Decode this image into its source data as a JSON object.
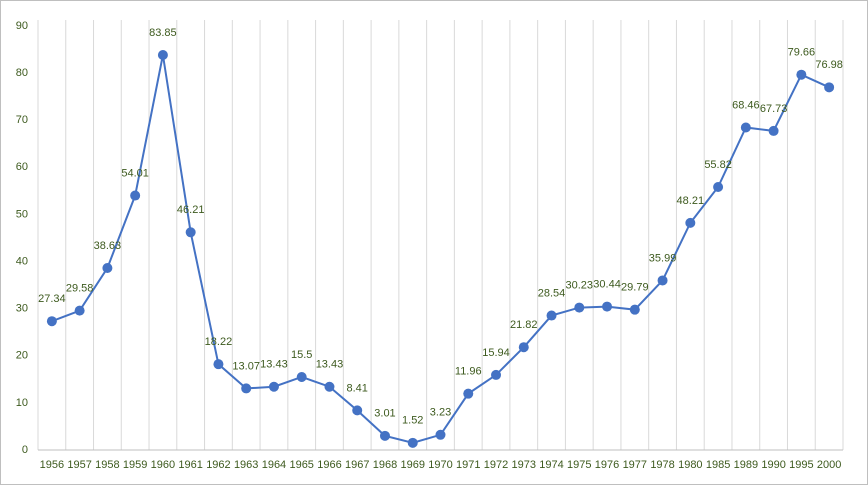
{
  "chart_data": {
    "type": "line",
    "categories": [
      "1956",
      "1957",
      "1958",
      "1959",
      "1960",
      "1961",
      "1962",
      "1963",
      "1964",
      "1965",
      "1966",
      "1967",
      "1968",
      "1969",
      "1970",
      "1971",
      "1972",
      "1973",
      "1974",
      "1975",
      "1976",
      "1977",
      "1978",
      "1980",
      "1985",
      "1989",
      "1990",
      "1995",
      "2000"
    ],
    "values": [
      27.34,
      29.58,
      38.63,
      54.01,
      83.85,
      46.21,
      18.22,
      13.07,
      13.43,
      15.5,
      13.43,
      8.41,
      3.01,
      1.52,
      3.23,
      11.96,
      15.94,
      21.82,
      28.54,
      30.23,
      30.44,
      29.79,
      35.99,
      48.21,
      55.82,
      68.46,
      67.73,
      79.66,
      76.98
    ],
    "color": "#4472c4",
    "ylim": [
      0,
      90
    ],
    "yticks": [
      0,
      10,
      20,
      30,
      40,
      50,
      60,
      70,
      80,
      90
    ],
    "x_grid": true,
    "data_labels": true
  }
}
